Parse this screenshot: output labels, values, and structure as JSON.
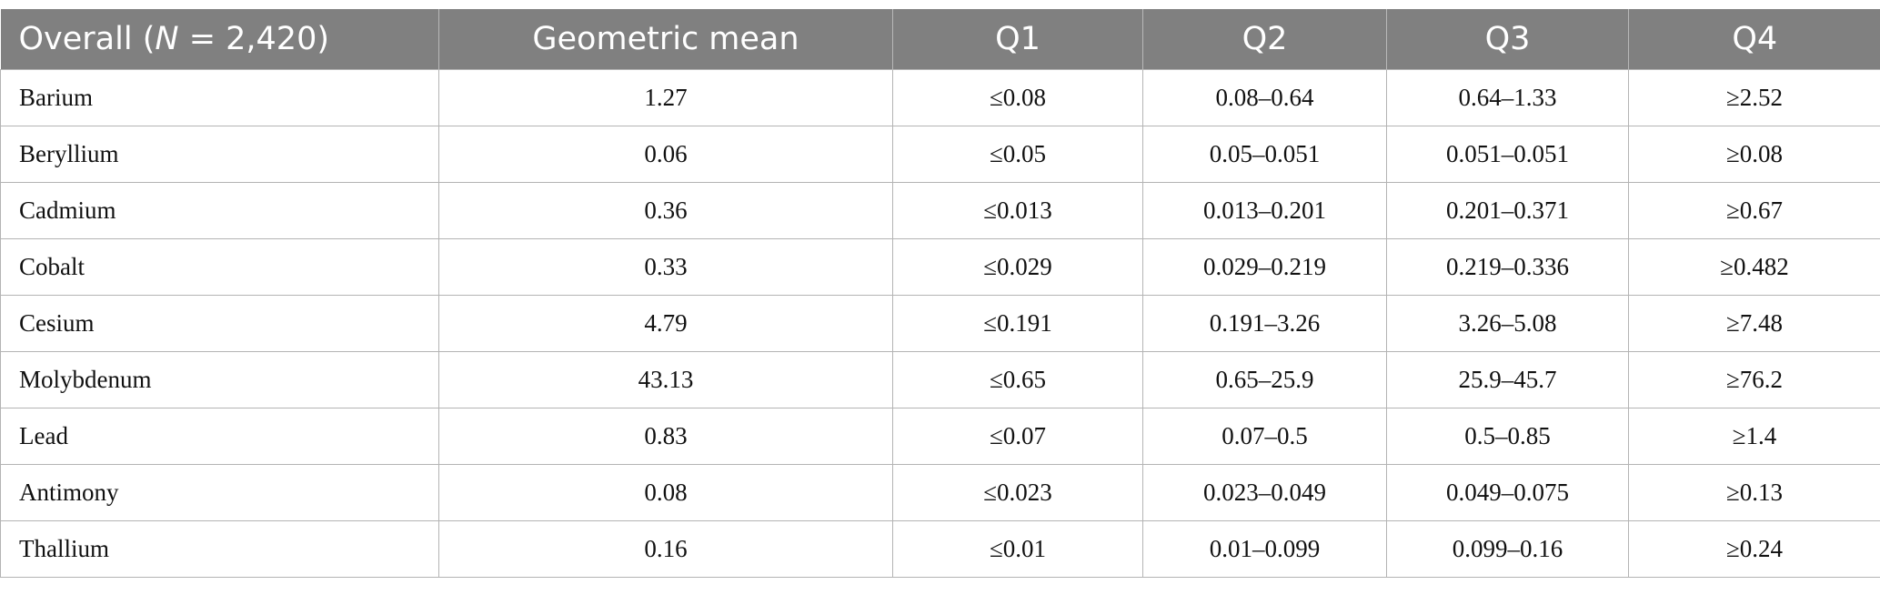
{
  "table": {
    "header": {
      "first": {
        "before": "Overall (",
        "italic": "N",
        "after": " = 2,420)"
      },
      "columns": [
        "Geometric mean",
        "Q1",
        "Q2",
        "Q3",
        "Q4"
      ]
    },
    "rows": [
      [
        "Barium",
        "1.27",
        "≤0.08",
        "0.08–0.64",
        "0.64–1.33",
        "≥2.52"
      ],
      [
        "Beryllium",
        "0.06",
        "≤0.05",
        "0.05–0.051",
        "0.051–0.051",
        "≥0.08"
      ],
      [
        "Cadmium",
        "0.36",
        "≤0.013",
        "0.013–0.201",
        "0.201–0.371",
        "≥0.67"
      ],
      [
        "Cobalt",
        "0.33",
        "≤0.029",
        "0.029–0.219",
        "0.219–0.336",
        "≥0.482"
      ],
      [
        "Cesium",
        "4.79",
        "≤0.191",
        "0.191–3.26",
        "3.26–5.08",
        "≥7.48"
      ],
      [
        "Molybdenum",
        "43.13",
        "≤0.65",
        "0.65–25.9",
        "25.9–45.7",
        "≥76.2"
      ],
      [
        "Lead",
        "0.83",
        "≤0.07",
        "0.07–0.5",
        "0.5–0.85",
        "≥1.4"
      ],
      [
        "Antimony",
        "0.08",
        "≤0.023",
        "0.023–0.049",
        "0.049–0.075",
        "≥0.13"
      ],
      [
        "Thallium",
        "0.16",
        "≤0.01",
        "0.01–0.099",
        "0.099–0.16",
        "≥0.24"
      ]
    ]
  }
}
